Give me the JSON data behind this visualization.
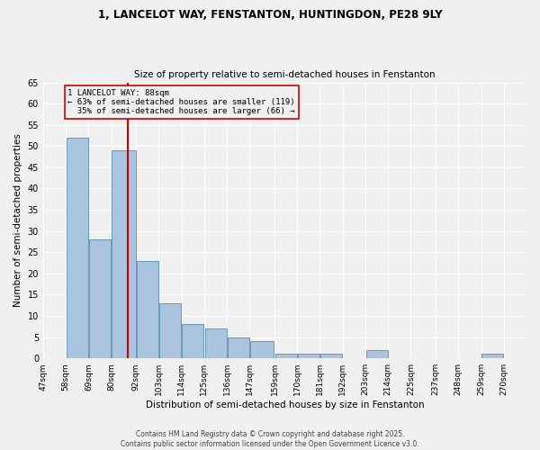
{
  "title1": "1, LANCELOT WAY, FENSTANTON, HUNTINGDON, PE28 9LY",
  "title2": "Size of property relative to semi-detached houses in Fenstanton",
  "xlabel": "Distribution of semi-detached houses by size in Fenstanton",
  "ylabel": "Number of semi-detached properties",
  "bar_left_edges": [
    47,
    58,
    69,
    80,
    92,
    103,
    114,
    125,
    136,
    147,
    159,
    170,
    181,
    192,
    203,
    214,
    225,
    237,
    248,
    259
  ],
  "bar_widths": [
    11,
    11,
    11,
    12,
    11,
    11,
    11,
    11,
    11,
    12,
    11,
    11,
    11,
    11,
    11,
    11,
    12,
    11,
    11,
    11
  ],
  "bar_heights": [
    0,
    52,
    28,
    49,
    23,
    13,
    8,
    7,
    5,
    4,
    1,
    1,
    1,
    0,
    2,
    0,
    0,
    0,
    0,
    1
  ],
  "bar_color": "#aac4e0",
  "bar_edge_color": "#6699bb",
  "property_size": 88,
  "property_label": "1 LANCELOT WAY: 88sqm",
  "pct_smaller": 63,
  "count_smaller": 119,
  "pct_larger": 35,
  "count_larger": 66,
  "vline_color": "#cc0000",
  "annotation_box_color": "#cc0000",
  "ylim": [
    0,
    65
  ],
  "yticks": [
    0,
    5,
    10,
    15,
    20,
    25,
    30,
    35,
    40,
    45,
    50,
    55,
    60,
    65
  ],
  "tick_labels": [
    "47sqm",
    "58sqm",
    "69sqm",
    "80sqm",
    "92sqm",
    "103sqm",
    "114sqm",
    "125sqm",
    "136sqm",
    "147sqm",
    "159sqm",
    "170sqm",
    "181sqm",
    "192sqm",
    "203sqm",
    "214sqm",
    "225sqm",
    "237sqm",
    "248sqm",
    "259sqm",
    "270sqm"
  ],
  "footer1": "Contains HM Land Registry data © Crown copyright and database right 2025.",
  "footer2": "Contains public sector information licensed under the Open Government Licence v3.0.",
  "bg_color": "#f0f0f0"
}
